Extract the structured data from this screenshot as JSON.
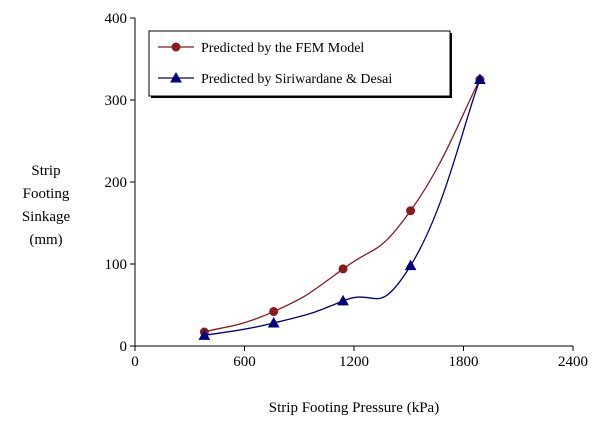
{
  "chart_data": {
    "type": "line",
    "xlabel": "Strip Footing Pressure (kPa)",
    "ylabel_lines": [
      "Strip",
      "Footing",
      "Sinkage",
      "(mm)"
    ],
    "xlim": [
      0,
      2400
    ],
    "ylim": [
      0,
      400
    ],
    "xticks": [
      "0",
      "600",
      "1200",
      "1800",
      "2400"
    ],
    "yticks": [
      "0",
      "100",
      "200",
      "300",
      "400"
    ],
    "grid": false,
    "legend_position": "top-left",
    "series": [
      {
        "name": "Predicted by the FEM Model",
        "color": "#8b1a1a",
        "marker": "circle",
        "points": [
          [
            380,
            17
          ],
          [
            760,
            42
          ],
          [
            1140,
            94
          ],
          [
            1510,
            165
          ],
          [
            1890,
            325
          ]
        ]
      },
      {
        "name": "Predicted by Siriwardane & Desai",
        "color": "#00007f",
        "marker": "triangle",
        "points": [
          [
            380,
            13
          ],
          [
            760,
            28
          ],
          [
            1140,
            55
          ],
          [
            1510,
            98
          ],
          [
            1890,
            325
          ]
        ]
      }
    ]
  }
}
